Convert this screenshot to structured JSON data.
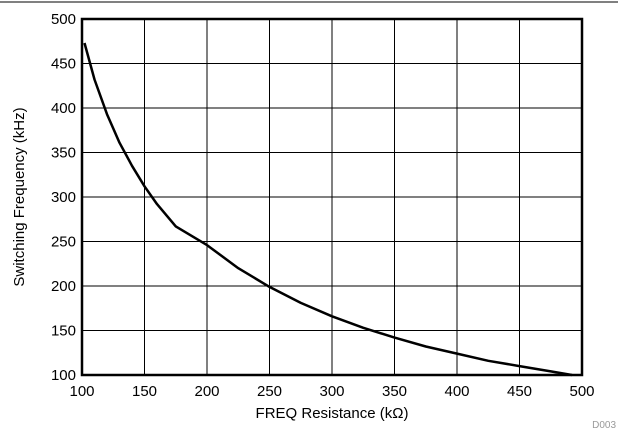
{
  "chart_data": {
    "type": "line",
    "title": "",
    "xlabel": "FREQ Resistance (kΩ)",
    "ylabel": "Switching Frequency (kHz)",
    "xlim": [
      100,
      500
    ],
    "ylim": [
      100,
      500
    ],
    "x_ticks": [
      100,
      150,
      200,
      250,
      300,
      350,
      400,
      450,
      500
    ],
    "y_ticks": [
      100,
      150,
      200,
      250,
      300,
      350,
      400,
      450,
      500
    ],
    "grid": true,
    "series": [
      {
        "x": [
          102,
          110,
          120,
          130,
          140,
          150,
          160,
          175,
          200,
          225,
          250,
          275,
          300,
          325,
          350,
          375,
          400,
          425,
          450,
          475,
          492
        ],
        "y": [
          473,
          432,
          393,
          361,
          335,
          312,
          292,
          267,
          246,
          220,
          199,
          181,
          166,
          153,
          142,
          132,
          124,
          116,
          110,
          104,
          100
        ],
        "color": "#000000"
      }
    ],
    "figure_id": "D003"
  }
}
